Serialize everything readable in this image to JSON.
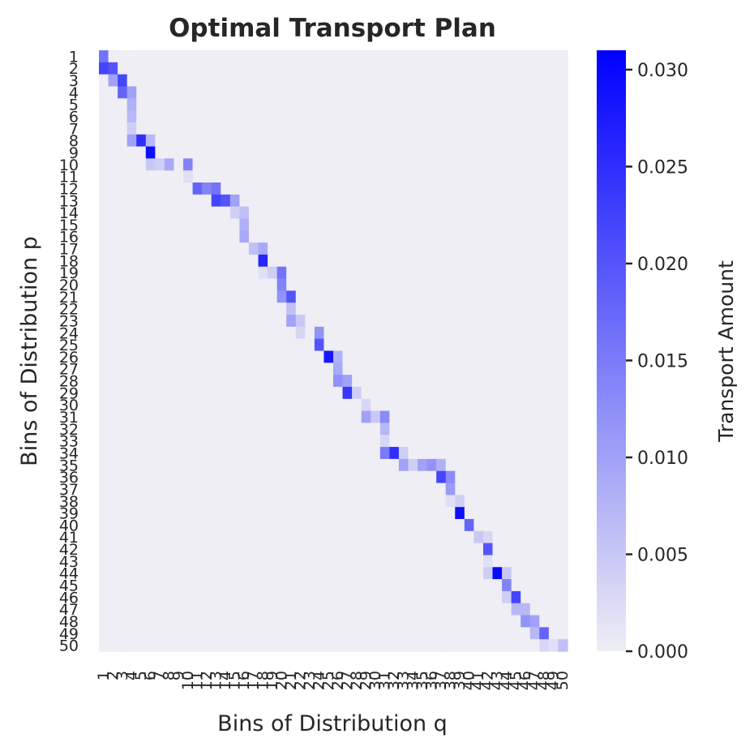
{
  "chart_data": {
    "type": "heatmap",
    "title": "Optimal Transport Plan",
    "xlabel": "Bins of Distribution q",
    "ylabel": "Bins of Distribution p",
    "row_labels": [
      "1",
      "2",
      "3",
      "4",
      "5",
      "6",
      "7",
      "8",
      "9",
      "10",
      "11",
      "12",
      "13",
      "14",
      "15",
      "16",
      "17",
      "18",
      "19",
      "20",
      "21",
      "22",
      "23",
      "24",
      "25",
      "26",
      "27",
      "28",
      "29",
      "30",
      "31",
      "32",
      "33",
      "34",
      "35",
      "36",
      "37",
      "38",
      "39",
      "40",
      "41",
      "42",
      "43",
      "44",
      "45",
      "46",
      "47",
      "48",
      "49",
      "50"
    ],
    "col_labels": [
      "1",
      "2",
      "3",
      "4",
      "5",
      "6",
      "7",
      "8",
      "9",
      "10",
      "11",
      "12",
      "13",
      "14",
      "15",
      "16",
      "17",
      "18",
      "19",
      "20",
      "21",
      "22",
      "23",
      "24",
      "25",
      "26",
      "27",
      "28",
      "29",
      "30",
      "31",
      "32",
      "33",
      "34",
      "35",
      "36",
      "37",
      "38",
      "39",
      "40",
      "41",
      "42",
      "43",
      "44",
      "45",
      "46",
      "47",
      "48",
      "49",
      "50"
    ],
    "colorbar": {
      "label": "Transport Amount",
      "range": [
        0,
        0.031
      ],
      "ticks": [
        "0.000",
        "0.005",
        "0.010",
        "0.015",
        "0.020",
        "0.025",
        "0.030"
      ],
      "tick_values": [
        0,
        0.005,
        0.01,
        0.015,
        0.02,
        0.025,
        0.03
      ],
      "color_low": "#eeeef4",
      "color_high": "#0000ff"
    },
    "background_value": 0,
    "cells": [
      [
        1,
        1,
        0.016
      ],
      [
        2,
        1,
        0.022
      ],
      [
        2,
        2,
        0.02
      ],
      [
        3,
        2,
        0.01
      ],
      [
        3,
        3,
        0.022
      ],
      [
        4,
        3,
        0.018
      ],
      [
        4,
        4,
        0.01
      ],
      [
        5,
        4,
        0.008
      ],
      [
        6,
        4,
        0.007
      ],
      [
        7,
        4,
        0.004
      ],
      [
        8,
        4,
        0.01
      ],
      [
        8,
        5,
        0.025
      ],
      [
        8,
        6,
        0.007
      ],
      [
        9,
        6,
        0.029
      ],
      [
        10,
        6,
        0.005
      ],
      [
        10,
        7,
        0.004
      ],
      [
        10,
        8,
        0.009
      ],
      [
        10,
        10,
        0.014
      ],
      [
        11,
        10,
        0.002
      ],
      [
        12,
        11,
        0.018
      ],
      [
        12,
        12,
        0.014
      ],
      [
        12,
        13,
        0.016
      ],
      [
        13,
        13,
        0.022
      ],
      [
        13,
        14,
        0.02
      ],
      [
        13,
        15,
        0.01
      ],
      [
        14,
        15,
        0.004
      ],
      [
        14,
        16,
        0.006
      ],
      [
        15,
        16,
        0.008
      ],
      [
        16,
        16,
        0.009
      ],
      [
        17,
        17,
        0.006
      ],
      [
        17,
        18,
        0.009
      ],
      [
        18,
        18,
        0.026
      ],
      [
        19,
        18,
        0.002
      ],
      [
        19,
        19,
        0.004
      ],
      [
        19,
        20,
        0.016
      ],
      [
        20,
        20,
        0.014
      ],
      [
        21,
        20,
        0.012
      ],
      [
        21,
        21,
        0.02
      ],
      [
        22,
        21,
        0.006
      ],
      [
        23,
        21,
        0.01
      ],
      [
        23,
        22,
        0.005
      ],
      [
        24,
        22,
        0.003
      ],
      [
        24,
        23,
        0.0
      ],
      [
        24,
        24,
        0.012
      ],
      [
        25,
        24,
        0.02
      ],
      [
        26,
        25,
        0.028
      ],
      [
        26,
        26,
        0.008
      ],
      [
        27,
        26,
        0.009
      ],
      [
        28,
        26,
        0.012
      ],
      [
        28,
        27,
        0.01
      ],
      [
        29,
        27,
        0.024
      ],
      [
        29,
        28,
        0.004
      ],
      [
        30,
        29,
        0.003
      ],
      [
        31,
        28,
        0.0
      ],
      [
        31,
        29,
        0.01
      ],
      [
        31,
        30,
        0.005
      ],
      [
        31,
        31,
        0.013
      ],
      [
        32,
        31,
        0.007
      ],
      [
        33,
        31,
        0.003
      ],
      [
        34,
        31,
        0.015
      ],
      [
        34,
        32,
        0.025
      ],
      [
        34,
        33,
        0.004
      ],
      [
        35,
        33,
        0.01
      ],
      [
        35,
        34,
        0.004
      ],
      [
        35,
        35,
        0.01
      ],
      [
        35,
        36,
        0.012
      ],
      [
        35,
        37,
        0.008
      ],
      [
        36,
        37,
        0.022
      ],
      [
        36,
        38,
        0.013
      ],
      [
        37,
        38,
        0.011
      ],
      [
        38,
        38,
        0.002
      ],
      [
        38,
        39,
        0.004
      ],
      [
        39,
        39,
        0.029
      ],
      [
        40,
        40,
        0.018
      ],
      [
        41,
        41,
        0.005
      ],
      [
        41,
        42,
        0.003
      ],
      [
        42,
        42,
        0.02
      ],
      [
        43,
        42,
        0.002
      ],
      [
        44,
        42,
        0.004
      ],
      [
        44,
        43,
        0.03
      ],
      [
        44,
        44,
        0.005
      ],
      [
        45,
        44,
        0.014
      ],
      [
        46,
        44,
        0.004
      ],
      [
        46,
        45,
        0.022
      ],
      [
        47,
        45,
        0.007
      ],
      [
        47,
        46,
        0.007
      ],
      [
        48,
        46,
        0.012
      ],
      [
        48,
        47,
        0.01
      ],
      [
        49,
        47,
        0.007
      ],
      [
        49,
        48,
        0.018
      ],
      [
        50,
        48,
        0.003
      ],
      [
        50,
        49,
        0.002
      ],
      [
        50,
        50,
        0.006
      ]
    ]
  }
}
